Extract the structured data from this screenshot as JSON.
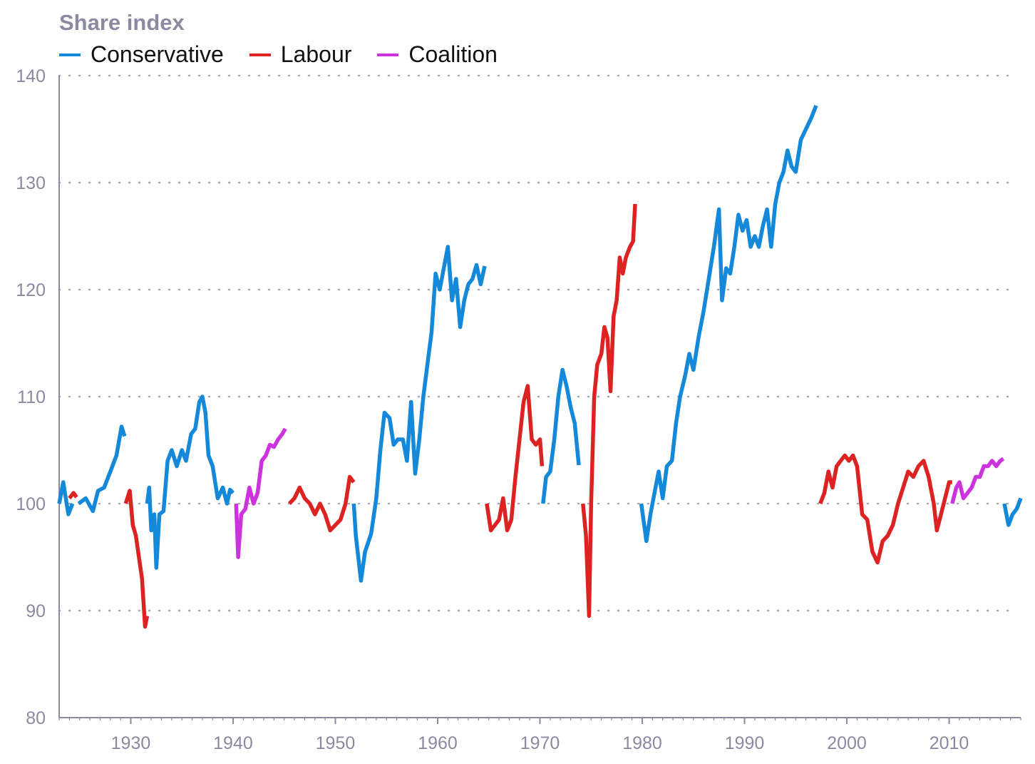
{
  "chart_data": {
    "type": "line",
    "title": "Share index",
    "xlabel": "",
    "ylabel": "",
    "xlim": [
      1923,
      2017
    ],
    "ylim": [
      80,
      140
    ],
    "x_ticks": [
      1930,
      1940,
      1950,
      1960,
      1970,
      1980,
      1990,
      2000,
      2010
    ],
    "y_ticks": [
      80,
      90,
      100,
      110,
      120,
      130,
      140
    ],
    "grid": "horizontal dotted",
    "legend_placement": "top-left",
    "colors": {
      "Conservative": "#1589d9",
      "Labour": "#dd2222",
      "Coalition": "#cc33dd"
    },
    "series": [
      {
        "name": "Conservative",
        "segments": [
          [
            [
              1923.0,
              100
            ],
            [
              1923.4,
              102
            ],
            [
              1923.9,
              99
            ],
            [
              1924.3,
              100
            ]
          ],
          [
            [
              1924.9,
              100
            ],
            [
              1925.6,
              100.5
            ],
            [
              1926.3,
              99.3
            ],
            [
              1926.8,
              101.2
            ],
            [
              1927.4,
              101.5
            ],
            [
              1928.0,
              103
            ],
            [
              1928.6,
              104.5
            ],
            [
              1929.1,
              107.2
            ],
            [
              1929.4,
              106.3
            ]
          ],
          [
            [
              1931.6,
              100
            ],
            [
              1931.8,
              101.5
            ],
            [
              1932.0,
              97.5
            ],
            [
              1932.3,
              99
            ],
            [
              1932.5,
              94
            ],
            [
              1932.8,
              99
            ],
            [
              1933.2,
              99.3
            ],
            [
              1933.6,
              104
            ],
            [
              1934.0,
              105
            ],
            [
              1934.5,
              103.5
            ],
            [
              1935.0,
              105
            ],
            [
              1935.4,
              104
            ],
            [
              1935.9,
              106.5
            ],
            [
              1936.3,
              107
            ],
            [
              1936.7,
              109.5
            ],
            [
              1937.0,
              110
            ],
            [
              1937.3,
              108.5
            ],
            [
              1937.6,
              104.5
            ],
            [
              1938.0,
              103.5
            ],
            [
              1938.5,
              100.5
            ],
            [
              1939.0,
              101.5
            ],
            [
              1939.4,
              100
            ],
            [
              1939.7,
              101.3
            ],
            [
              1940.0,
              101
            ]
          ],
          [
            [
              1951.8,
              100
            ],
            [
              1952.0,
              97
            ],
            [
              1952.5,
              92.8
            ],
            [
              1952.9,
              95.5
            ],
            [
              1953.5,
              97.2
            ],
            [
              1954.0,
              100.5
            ],
            [
              1954.4,
              105
            ],
            [
              1954.8,
              108.5
            ],
            [
              1955.3,
              108
            ],
            [
              1955.7,
              105.5
            ],
            [
              1956.1,
              106
            ],
            [
              1956.6,
              106
            ],
            [
              1957.0,
              104
            ],
            [
              1957.4,
              109.5
            ],
            [
              1957.8,
              102.8
            ],
            [
              1958.2,
              106
            ],
            [
              1958.6,
              110
            ],
            [
              1959.0,
              113
            ],
            [
              1959.4,
              116
            ],
            [
              1959.8,
              121.5
            ],
            [
              1960.2,
              120
            ],
            [
              1960.6,
              122
            ],
            [
              1961.0,
              124
            ],
            [
              1961.4,
              119
            ],
            [
              1961.8,
              121
            ],
            [
              1962.2,
              116.5
            ],
            [
              1962.6,
              119
            ],
            [
              1963.0,
              120.5
            ],
            [
              1963.4,
              121
            ],
            [
              1963.8,
              122.3
            ],
            [
              1964.2,
              120.5
            ],
            [
              1964.6,
              122.2
            ]
          ],
          [
            [
              1970.3,
              100
            ],
            [
              1970.6,
              102.5
            ],
            [
              1971.0,
              103
            ],
            [
              1971.4,
              106
            ],
            [
              1971.8,
              110
            ],
            [
              1972.2,
              112.5
            ],
            [
              1972.6,
              111
            ],
            [
              1973.0,
              109
            ],
            [
              1973.4,
              107.5
            ],
            [
              1973.8,
              103.6
            ]
          ],
          [
            [
              1979.9,
              100
            ],
            [
              1980.4,
              96.5
            ],
            [
              1980.8,
              99
            ],
            [
              1981.2,
              101
            ],
            [
              1981.6,
              103
            ],
            [
              1982.0,
              100.5
            ],
            [
              1982.4,
              103.5
            ],
            [
              1982.9,
              104
            ],
            [
              1983.3,
              107.5
            ],
            [
              1983.7,
              110
            ],
            [
              1984.2,
              112
            ],
            [
              1984.6,
              114
            ],
            [
              1985.0,
              112.5
            ],
            [
              1985.5,
              115.5
            ],
            [
              1986.0,
              118
            ],
            [
              1986.5,
              121
            ],
            [
              1987.0,
              124
            ],
            [
              1987.5,
              127.5
            ],
            [
              1987.8,
              119
            ],
            [
              1988.2,
              122
            ],
            [
              1988.6,
              121.5
            ],
            [
              1989.0,
              124
            ],
            [
              1989.4,
              127
            ],
            [
              1989.8,
              125.5
            ],
            [
              1990.2,
              126.5
            ],
            [
              1990.6,
              124
            ],
            [
              1991.0,
              125
            ],
            [
              1991.4,
              124
            ],
            [
              1991.8,
              126
            ],
            [
              1992.2,
              127.5
            ],
            [
              1992.6,
              124
            ],
            [
              1993.0,
              128
            ],
            [
              1993.4,
              130
            ],
            [
              1993.8,
              131
            ],
            [
              1994.2,
              133
            ],
            [
              1994.6,
              131.5
            ],
            [
              1995.0,
              131
            ],
            [
              1995.5,
              134
            ],
            [
              1996.0,
              135
            ],
            [
              1996.5,
              136
            ],
            [
              1997.0,
              137.2
            ]
          ],
          [
            [
              2015.4,
              100
            ],
            [
              2015.8,
              98
            ],
            [
              2016.2,
              99
            ],
            [
              2016.6,
              99.5
            ],
            [
              2017.0,
              100.5
            ]
          ]
        ]
      },
      {
        "name": "Labour",
        "segments": [
          [
            [
              1924.0,
              100.5
            ],
            [
              1924.4,
              101
            ],
            [
              1924.7,
              100.6
            ]
          ],
          [
            [
              1929.5,
              100
            ],
            [
              1929.9,
              101.2
            ],
            [
              1930.2,
              98
            ],
            [
              1930.5,
              97
            ],
            [
              1930.8,
              95
            ],
            [
              1931.1,
              93
            ],
            [
              1931.4,
              88.5
            ],
            [
              1931.6,
              89.5
            ]
          ],
          [
            [
              1945.5,
              100
            ],
            [
              1946.0,
              100.5
            ],
            [
              1946.5,
              101.5
            ],
            [
              1947.0,
              100.5
            ],
            [
              1947.5,
              100
            ],
            [
              1948.0,
              99
            ],
            [
              1948.5,
              100
            ],
            [
              1949.0,
              99
            ],
            [
              1949.5,
              97.5
            ],
            [
              1950.0,
              98
            ],
            [
              1950.5,
              98.5
            ],
            [
              1951.0,
              100
            ],
            [
              1951.4,
              102.5
            ],
            [
              1951.8,
              102
            ]
          ],
          [
            [
              1964.8,
              100
            ],
            [
              1965.2,
              97.5
            ],
            [
              1965.6,
              98
            ],
            [
              1966.0,
              98.5
            ],
            [
              1966.4,
              100.5
            ],
            [
              1966.8,
              97.5
            ],
            [
              1967.2,
              98.5
            ],
            [
              1967.6,
              102.5
            ],
            [
              1968.0,
              106
            ],
            [
              1968.4,
              109.5
            ],
            [
              1968.8,
              111
            ],
            [
              1969.2,
              106
            ],
            [
              1969.6,
              105.5
            ],
            [
              1970.0,
              106
            ],
            [
              1970.2,
              103.5
            ]
          ],
          [
            [
              1974.2,
              100
            ],
            [
              1974.5,
              97
            ],
            [
              1974.8,
              89.5
            ],
            [
              1975.0,
              100
            ],
            [
              1975.3,
              110
            ],
            [
              1975.6,
              113
            ],
            [
              1976.0,
              114
            ],
            [
              1976.3,
              116.5
            ],
            [
              1976.6,
              115.5
            ],
            [
              1976.9,
              110.5
            ],
            [
              1977.2,
              117.5
            ],
            [
              1977.5,
              119
            ],
            [
              1977.8,
              123
            ],
            [
              1978.1,
              121.5
            ],
            [
              1978.4,
              123
            ],
            [
              1978.8,
              124
            ],
            [
              1979.1,
              124.5
            ],
            [
              1979.3,
              128
            ]
          ],
          [
            [
              1997.4,
              100
            ],
            [
              1997.8,
              101
            ],
            [
              1998.2,
              103
            ],
            [
              1998.6,
              101.5
            ],
            [
              1999.0,
              103.5
            ],
            [
              1999.4,
              104
            ],
            [
              1999.8,
              104.5
            ],
            [
              2000.2,
              104
            ],
            [
              2000.6,
              104.5
            ],
            [
              2001.0,
              103.5
            ],
            [
              2001.5,
              99
            ],
            [
              2002.0,
              98.5
            ],
            [
              2002.5,
              95.5
            ],
            [
              2003.0,
              94.5
            ],
            [
              2003.5,
              96.5
            ],
            [
              2004.0,
              97
            ],
            [
              2004.5,
              98
            ],
            [
              2005.0,
              100
            ],
            [
              2005.5,
              101.5
            ],
            [
              2006.0,
              103
            ],
            [
              2006.5,
              102.5
            ],
            [
              2007.0,
              103.5
            ],
            [
              2007.5,
              104
            ],
            [
              2008.0,
              102.5
            ],
            [
              2008.5,
              100
            ],
            [
              2008.8,
              97.5
            ],
            [
              2009.2,
              99
            ],
            [
              2009.6,
              100.5
            ],
            [
              2010.0,
              102
            ],
            [
              2010.3,
              102
            ]
          ]
        ]
      },
      {
        "name": "Coalition",
        "segments": [
          [
            [
              1940.3,
              100
            ],
            [
              1940.5,
              95
            ],
            [
              1940.8,
              99
            ],
            [
              1941.2,
              99.5
            ],
            [
              1941.6,
              101.5
            ],
            [
              1942.0,
              100
            ],
            [
              1942.4,
              101
            ],
            [
              1942.8,
              104
            ],
            [
              1943.2,
              104.5
            ],
            [
              1943.6,
              105.5
            ],
            [
              1944.0,
              105.3
            ],
            [
              1944.4,
              106
            ],
            [
              1944.8,
              106.5
            ],
            [
              1945.1,
              107
            ]
          ],
          [
            [
              2010.3,
              100
            ],
            [
              2010.7,
              101.5
            ],
            [
              2011.0,
              102
            ],
            [
              2011.4,
              100.5
            ],
            [
              2011.8,
              101
            ],
            [
              2012.2,
              101.5
            ],
            [
              2012.6,
              102.5
            ],
            [
              2013.0,
              102.5
            ],
            [
              2013.4,
              103.5
            ],
            [
              2013.8,
              103.5
            ],
            [
              2014.2,
              104
            ],
            [
              2014.6,
              103.5
            ],
            [
              2015.0,
              104
            ],
            [
              2015.3,
              104.2
            ]
          ]
        ]
      }
    ]
  }
}
